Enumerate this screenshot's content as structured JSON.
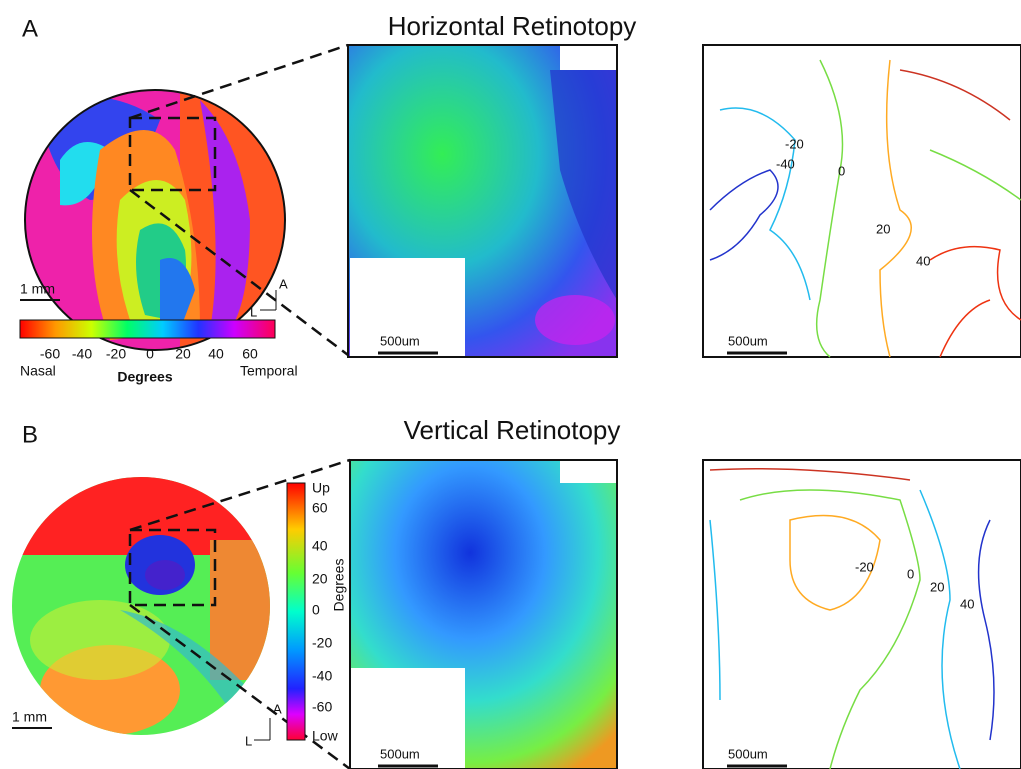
{
  "panel_a": {
    "label": "A",
    "title": "Horizontal Retinotopy",
    "scale_mm": "1 mm",
    "axis_a": "A",
    "axis_l": "L",
    "colorbar": {
      "ticks": [
        -60,
        -40,
        -20,
        0,
        20,
        40,
        60
      ],
      "left": "Nasal",
      "center": "Degrees",
      "right": "Temporal"
    },
    "zoom_scale": "500um",
    "contour_scale": "500um",
    "contour_labels": [
      -20,
      -40,
      0,
      20,
      40
    ]
  },
  "panel_b": {
    "label": "B",
    "title": "Vertical Retinotopy",
    "scale_mm": "1 mm",
    "axis_a": "A",
    "axis_l": "L",
    "colorbar": {
      "top": "Up",
      "ticks": [
        60,
        40,
        20,
        0,
        -20,
        -40,
        -60
      ],
      "bottom": "Low",
      "title": "Degrees"
    },
    "zoom_scale": "500um",
    "contour_scale": "500um",
    "contour_labels": [
      -20,
      0,
      20,
      40
    ]
  }
}
